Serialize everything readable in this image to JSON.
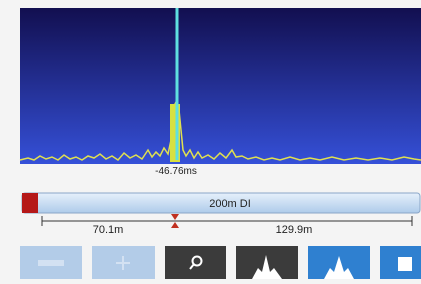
{
  "display": {
    "marker_time": "-46.76ms",
    "range_label": "200m DI",
    "left_distance": "70.1m",
    "right_distance": "129.9m"
  }
}
